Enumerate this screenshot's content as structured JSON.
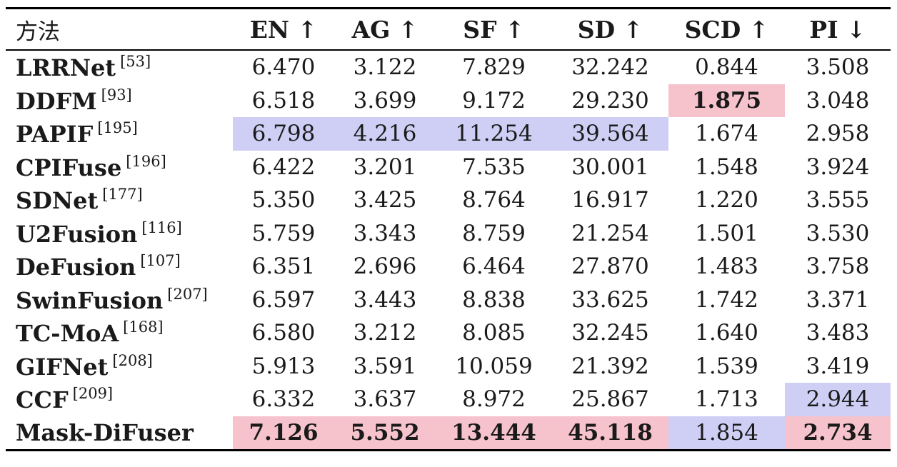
{
  "table": {
    "headers": [
      "方法",
      "EN ↑",
      "AG ↑",
      "SF ↑",
      "SD ↑",
      "SCD ↑",
      "PI ↓"
    ],
    "rows": [
      {
        "method": "LRRNet",
        "cite": "[53]",
        "values": [
          "6.470",
          "3.122",
          "7.829",
          "32.242",
          "0.844",
          "3.508"
        ],
        "highlight": [
          "",
          "",
          "",
          "",
          "",
          ""
        ]
      },
      {
        "method": "DDFM",
        "cite": "[93]",
        "values": [
          "6.518",
          "3.699",
          "9.172",
          "29.230",
          "1.875",
          "3.048"
        ],
        "highlight": [
          "",
          "",
          "",
          "",
          "best",
          ""
        ]
      },
      {
        "method": "PAPIF",
        "cite": "[195]",
        "values": [
          "6.798",
          "4.216",
          "11.254",
          "39.564",
          "1.674",
          "2.958"
        ],
        "highlight": [
          "second",
          "second",
          "second",
          "second",
          "",
          ""
        ]
      },
      {
        "method": "CPIFuse",
        "cite": "[196]",
        "values": [
          "6.422",
          "3.201",
          "7.535",
          "30.001",
          "1.548",
          "3.924"
        ],
        "highlight": [
          "",
          "",
          "",
          "",
          "",
          ""
        ]
      },
      {
        "method": "SDNet",
        "cite": "[177]",
        "values": [
          "5.350",
          "3.425",
          "8.764",
          "16.917",
          "1.220",
          "3.555"
        ],
        "highlight": [
          "",
          "",
          "",
          "",
          "",
          ""
        ]
      },
      {
        "method": "U2Fusion",
        "cite": "[116]",
        "values": [
          "5.759",
          "3.343",
          "8.759",
          "21.254",
          "1.501",
          "3.530"
        ],
        "highlight": [
          "",
          "",
          "",
          "",
          "",
          ""
        ]
      },
      {
        "method": "DeFusion",
        "cite": "[107]",
        "values": [
          "6.351",
          "2.696",
          "6.464",
          "27.870",
          "1.483",
          "3.758"
        ],
        "highlight": [
          "",
          "",
          "",
          "",
          "",
          ""
        ]
      },
      {
        "method": "SwinFusion",
        "cite": "[207]",
        "values": [
          "6.597",
          "3.443",
          "8.838",
          "33.625",
          "1.742",
          "3.371"
        ],
        "highlight": [
          "",
          "",
          "",
          "",
          "",
          ""
        ]
      },
      {
        "method": "TC-MoA",
        "cite": "[168]",
        "values": [
          "6.580",
          "3.212",
          "8.085",
          "32.245",
          "1.640",
          "3.483"
        ],
        "highlight": [
          "",
          "",
          "",
          "",
          "",
          ""
        ]
      },
      {
        "method": "GIFNet",
        "cite": "[208]",
        "values": [
          "5.913",
          "3.591",
          "10.059",
          "21.392",
          "1.539",
          "3.419"
        ],
        "highlight": [
          "",
          "",
          "",
          "",
          "",
          ""
        ]
      },
      {
        "method": "CCF",
        "cite": "[209]",
        "values": [
          "6.332",
          "3.637",
          "8.972",
          "25.867",
          "1.713",
          "2.944"
        ],
        "highlight": [
          "",
          "",
          "",
          "",
          "",
          "second"
        ]
      },
      {
        "method": "Mask-DiFuser",
        "cite": "",
        "values": [
          "7.126",
          "5.552",
          "13.444",
          "45.118",
          "1.854",
          "2.734"
        ],
        "highlight": [
          "best",
          "best",
          "best",
          "best",
          "second",
          "best"
        ]
      }
    ]
  }
}
